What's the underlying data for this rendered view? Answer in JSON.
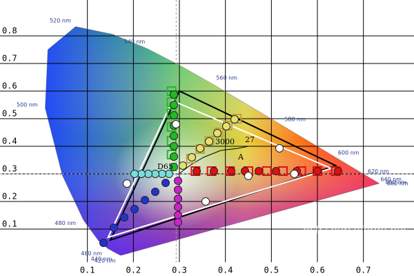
{
  "chart_data": {
    "type": "chromaticity",
    "xlim": [
      -0.09,
      0.81
    ],
    "ylim": [
      -0.02,
      0.93
    ],
    "xticks": [
      0.1,
      0.2,
      0.3,
      0.4,
      0.5,
      0.6,
      0.7
    ],
    "yticks": [
      0.1,
      0.2,
      0.3,
      0.4,
      0.5,
      0.6,
      0.7,
      0.8
    ],
    "grid": true,
    "spectral_locus": {
      "x": [
        0.1741,
        0.1714,
        0.1644,
        0.144,
        0.1241,
        0.0913,
        0.0454,
        0.0082,
        0.0139,
        0.0743,
        0.1547,
        0.2296,
        0.3016,
        0.3731,
        0.4441,
        0.5125,
        0.5752,
        0.627,
        0.6915,
        0.719,
        0.73,
        0.7334,
        0.7347
      ],
      "y": [
        0.005,
        0.0051,
        0.0109,
        0.0297,
        0.0578,
        0.1327,
        0.295,
        0.5384,
        0.7502,
        0.8338,
        0.8059,
        0.7543,
        0.6923,
        0.6245,
        0.5547,
        0.4866,
        0.4242,
        0.3725,
        0.3083,
        0.2809,
        0.27,
        0.2666,
        0.2653
      ],
      "labels": [
        null,
        "420 nm",
        "440 nm",
        "460 nm",
        null,
        "480 nm",
        null,
        "500 nm",
        null,
        "520 nm",
        null,
        "540 nm",
        null,
        "560 nm",
        null,
        "580 nm",
        null,
        "600 nm",
        "620 nm",
        "640 nm",
        "660 nm",
        "680 nm",
        null
      ]
    },
    "reference_gamut": {
      "x": [
        0.64,
        0.3,
        0.15
      ],
      "y": [
        0.33,
        0.6,
        0.06
      ],
      "color": "#000000"
    },
    "measured_gamut": {
      "x": [
        0.63,
        0.285,
        0.145
      ],
      "y": [
        0.32,
        0.565,
        0.07
      ],
      "color": "#ffffff"
    },
    "white_point": {
      "x": 0.293,
      "y": 0.3
    },
    "planckian_locus": {
      "x": [
        0.297,
        0.3225,
        0.3525,
        0.39,
        0.4275,
        0.45
      ],
      "y": [
        0.2975,
        0.33,
        0.36,
        0.385,
        0.3925,
        0.4
      ],
      "color": "#000000"
    },
    "annotations": [
      "D65",
      "3000",
      "27",
      "A"
    ],
    "series": [
      {
        "color": "#dd1111",
        "x": [
          0.3375,
          0.375,
          0.4125,
          0.4425,
          0.4725,
          0.51,
          0.555,
          0.6,
          0.645
        ],
        "y": [
          0.31,
          0.31,
          0.31,
          0.31,
          0.31,
          0.31,
          0.31,
          0.31,
          0.31
        ]
      },
      {
        "color": "#22bb22",
        "x": [
          0.288,
          0.288,
          0.288,
          0.288,
          0.288,
          0.288,
          0.288,
          0.288
        ],
        "y": [
          0.5875,
          0.55,
          0.5125,
          0.475,
          0.4375,
          0.4,
          0.3625,
          0.325
        ]
      },
      {
        "color": "#2233cc",
        "x": [
          0.27,
          0.2475,
          0.225,
          0.2025,
          0.18,
          0.1575,
          0.135
        ],
        "y": [
          0.2675,
          0.235,
          0.205,
          0.1725,
          0.1425,
          0.105,
          0.05
        ]
      },
      {
        "color": "#77dddd",
        "x": [
          0.2775,
          0.2625,
          0.2475,
          0.2325,
          0.2175,
          0.2025
        ],
        "y": [
          0.3,
          0.3,
          0.3,
          0.3,
          0.3,
          0.3
        ]
      },
      {
        "color": "#cc22cc",
        "x": [
          0.297,
          0.297,
          0.297,
          0.297,
          0.297,
          0.297
        ],
        "y": [
          0.275,
          0.2425,
          0.21,
          0.18,
          0.15,
          0.125
        ]
      },
      {
        "color": "#e6e070",
        "x": [
          0.3075,
          0.327,
          0.345,
          0.3645,
          0.3825,
          0.402,
          0.42
        ],
        "y": [
          0.33,
          0.36,
          0.3925,
          0.4175,
          0.4475,
          0.4725,
          0.4975
        ]
      },
      {
        "color": "#ffffff",
        "x": [
          0.2925,
          0.357,
          0.45,
          0.5175,
          0.55,
          0.186
        ],
        "y": [
          0.48,
          0.2,
          0.2925,
          0.3925,
          0.3,
          0.265
        ]
      }
    ],
    "targets": [
      {
        "color": "#dd1111",
        "x": [
          0.335,
          0.37,
          0.41,
          0.45,
          0.49,
          0.525,
          0.565,
          0.6,
          0.64
        ],
        "y": [
          0.31,
          0.31,
          0.31,
          0.31,
          0.31,
          0.31,
          0.31,
          0.31,
          0.31
        ]
      },
      {
        "color": "#22bb22",
        "x": [
          0.283,
          0.283,
          0.283,
          0.283,
          0.283,
          0.283
        ],
        "y": [
          0.6,
          0.56,
          0.52,
          0.47,
          0.42,
          0.37
        ]
      },
      {
        "color": "#c8a040",
        "x": [
          0.325,
          0.345,
          0.365,
          0.385,
          0.405,
          0.425
        ],
        "y": [
          0.355,
          0.39,
          0.42,
          0.45,
          0.475,
          0.5
        ]
      }
    ],
    "watermark": "hcfr.sourceforge.net"
  }
}
